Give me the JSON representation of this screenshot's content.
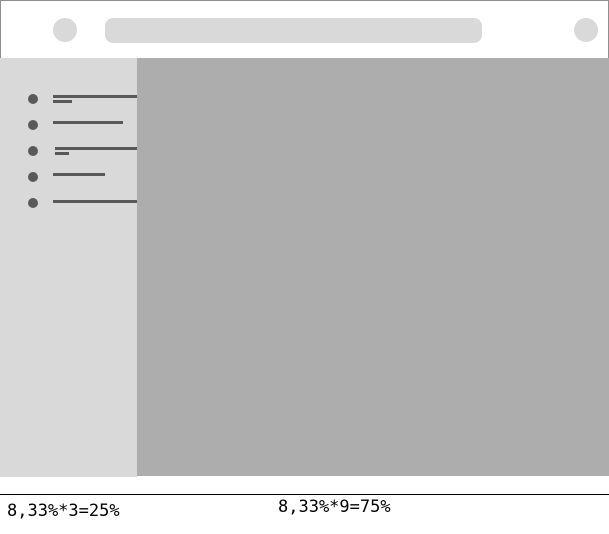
{
  "captions": {
    "sidebar_width": "8,33%*3=25%",
    "content_width": "8,33%*9=75%"
  },
  "colors": {
    "header_bg": "#ffffff",
    "placeholder": "#d9d9d9",
    "sidebar_bg": "#d9d9d9",
    "main_bg": "#adadad",
    "nav_marks": "#595959"
  }
}
